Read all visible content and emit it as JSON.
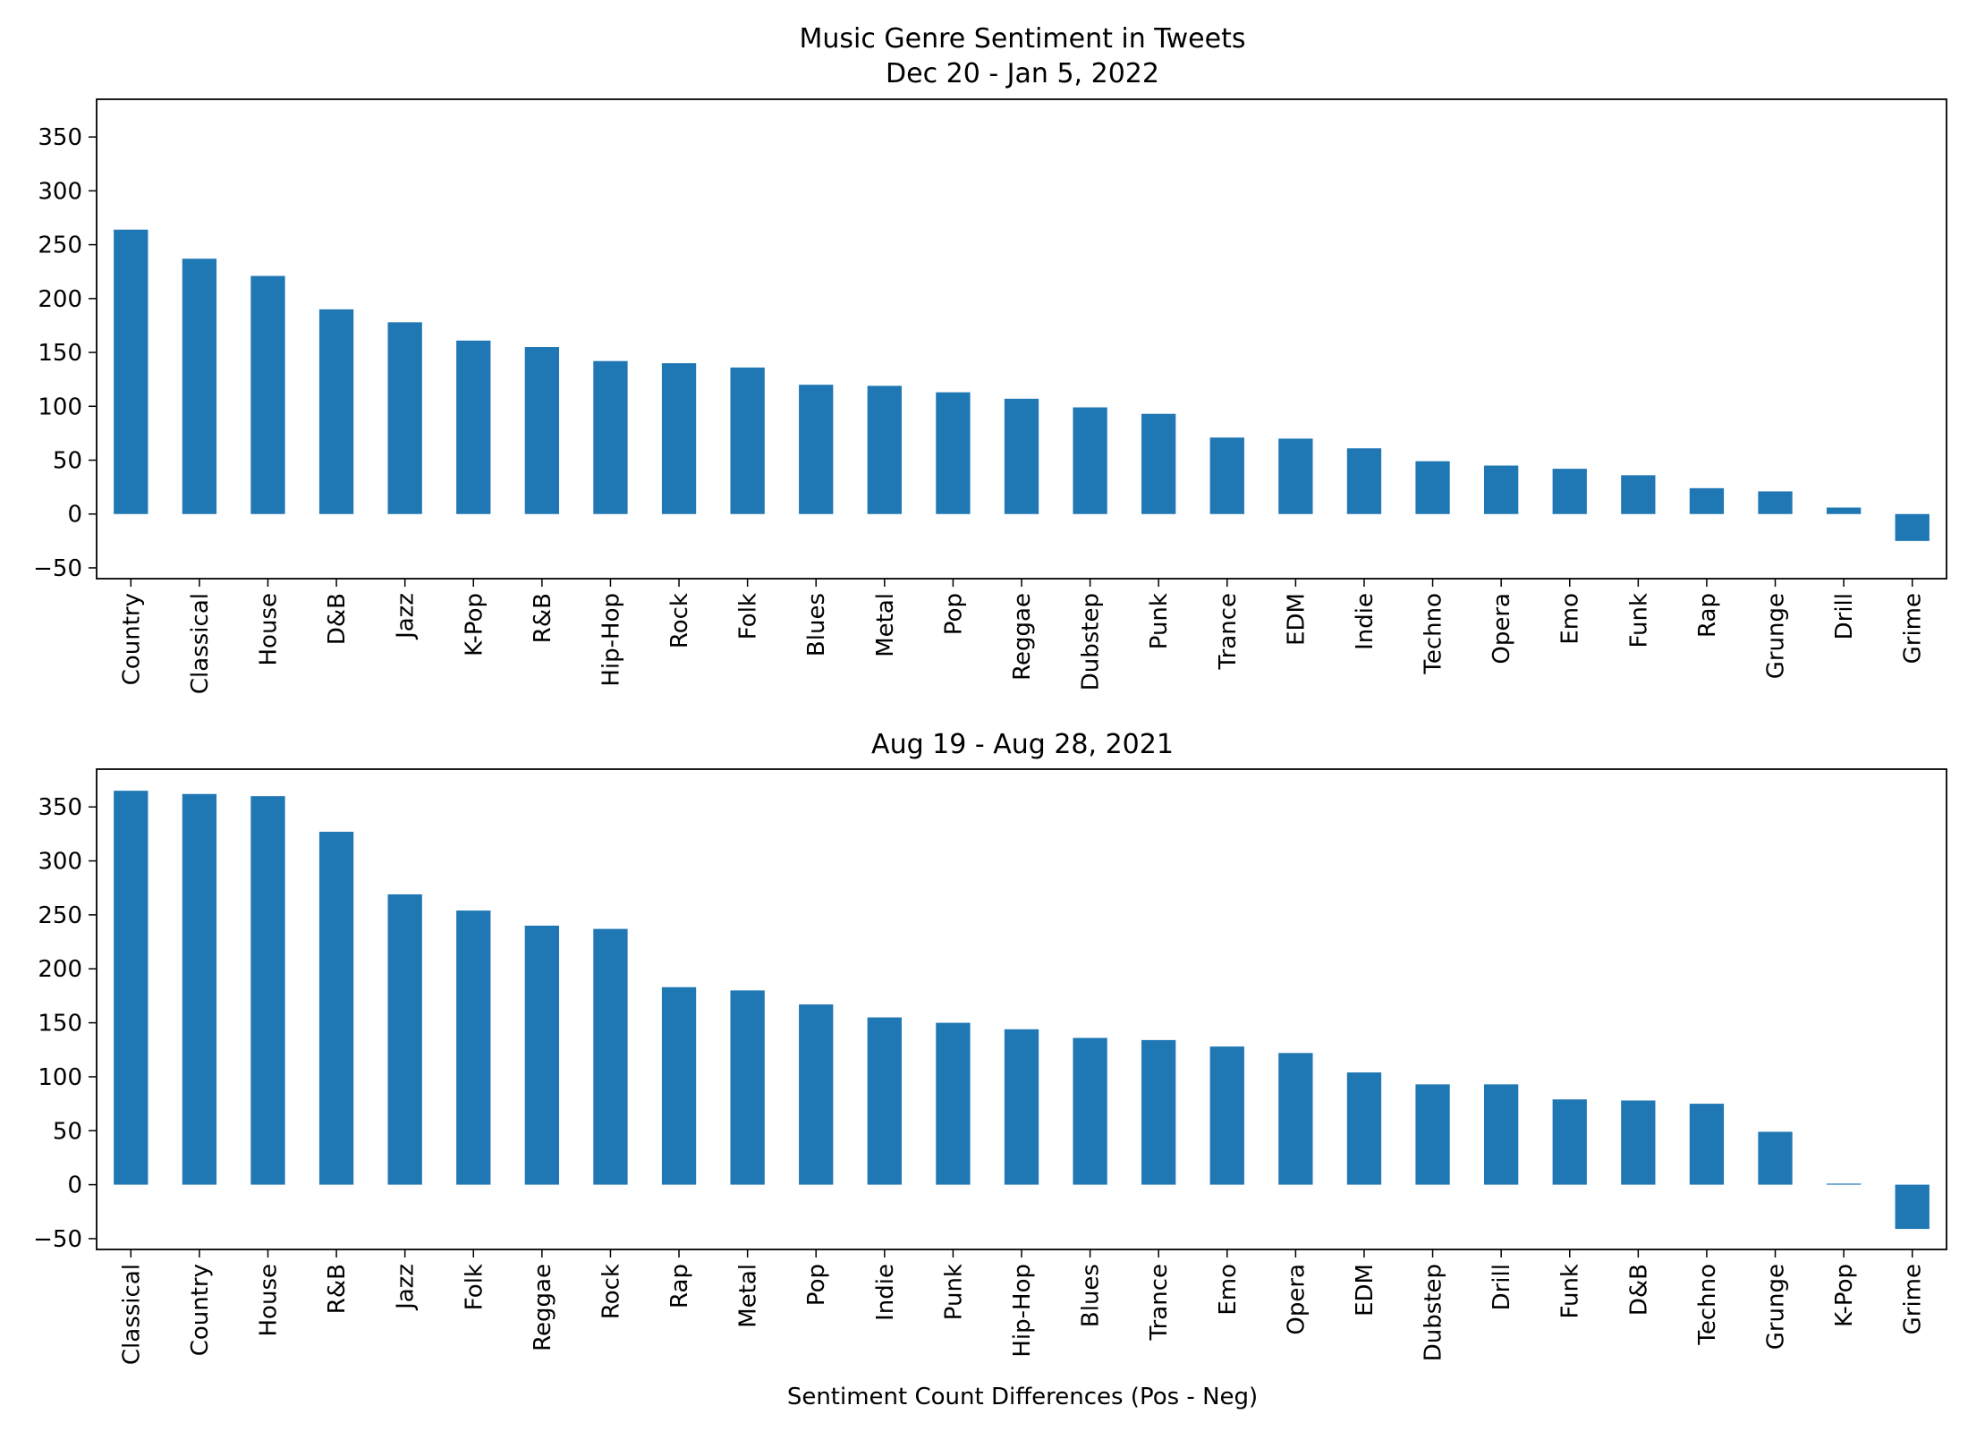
{
  "figure": {
    "suptitle": "Music Genre Sentiment in Tweets",
    "xlabel": "Sentiment Count Differences (Pos - Neg)"
  },
  "chart_data": [
    {
      "type": "bar",
      "title": "Dec 20 - Jan 5, 2022",
      "categories": [
        "Country",
        "Classical",
        "House",
        "D&B",
        "Jazz",
        "K-Pop",
        "R&B",
        "Hip-Hop",
        "Rock",
        "Folk",
        "Blues",
        "Metal",
        "Pop",
        "Reggae",
        "Dubstep",
        "Punk",
        "Trance",
        "EDM",
        "Indie",
        "Techno",
        "Opera",
        "Emo",
        "Funk",
        "Rap",
        "Grunge",
        "Drill",
        "Grime"
      ],
      "values": [
        264,
        237,
        221,
        190,
        178,
        161,
        155,
        142,
        140,
        136,
        120,
        119,
        113,
        107,
        99,
        93,
        71,
        70,
        61,
        49,
        45,
        42,
        36,
        24,
        21,
        6,
        -25
      ],
      "ylim": [
        -60,
        385
      ],
      "yticks": [
        -50,
        0,
        50,
        100,
        150,
        200,
        250,
        300,
        350
      ],
      "color": "#1f77b4",
      "grid": false
    },
    {
      "type": "bar",
      "title": "Aug 19 - Aug 28, 2021",
      "categories": [
        "Classical",
        "Country",
        "House",
        "R&B",
        "Jazz",
        "Folk",
        "Reggae",
        "Rock",
        "Rap",
        "Metal",
        "Pop",
        "Indie",
        "Punk",
        "Hip-Hop",
        "Blues",
        "Trance",
        "Emo",
        "Opera",
        "EDM",
        "Dubstep",
        "Drill",
        "Funk",
        "D&B",
        "Techno",
        "Grunge",
        "K-Pop",
        "Grime"
      ],
      "values": [
        365,
        362,
        360,
        327,
        269,
        254,
        240,
        237,
        183,
        180,
        167,
        155,
        150,
        144,
        136,
        134,
        128,
        122,
        104,
        93,
        93,
        79,
        78,
        75,
        49,
        1,
        -41
      ],
      "ylim": [
        -60,
        385
      ],
      "yticks": [
        -50,
        0,
        50,
        100,
        150,
        200,
        250,
        300,
        350
      ],
      "color": "#1f77b4",
      "grid": false
    }
  ]
}
